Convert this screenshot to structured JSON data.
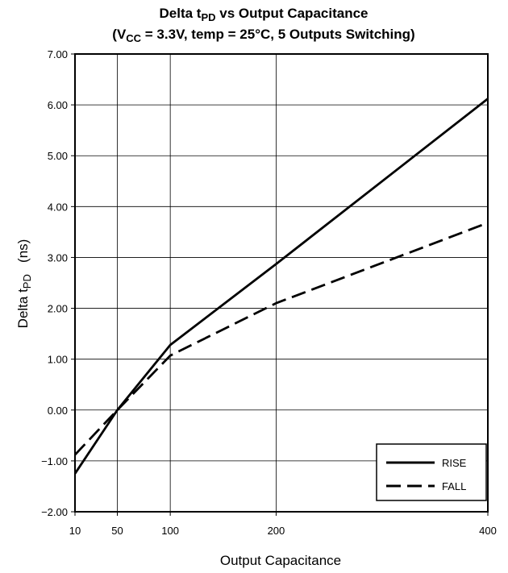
{
  "chart_data": {
    "type": "line",
    "title": {
      "line1": {
        "before": "Delta t",
        "sub": "PD",
        "after": " vs Output Capacitance"
      },
      "line2": {
        "before": "(V",
        "sub": "CC",
        "after": " = 3.3V, temp = 25°C, 5 Outputs Switching)"
      }
    },
    "xlabel": "Output Capacitance",
    "ylabel": {
      "before": "Delta t",
      "sub": "PD",
      "after": "   (ns)"
    },
    "xlim": [
      10,
      400
    ],
    "ylim": [
      -2.0,
      7.0
    ],
    "x_ticks": [
      10,
      50,
      100,
      200,
      400
    ],
    "x_tick_labels": [
      "10",
      "50",
      "100",
      "200",
      "400"
    ],
    "x_gridlines": [
      50,
      100,
      200
    ],
    "y_ticks": [
      7.0,
      6.0,
      5.0,
      4.0,
      3.0,
      2.0,
      1.0,
      0.0,
      -1.0,
      -2.0
    ],
    "y_tick_labels": [
      "7.00",
      "6.00",
      "5.00",
      "4.00",
      "3.00",
      "2.00",
      "1.00",
      "0.00",
      "−1.00",
      "−2.00"
    ],
    "grid": true,
    "legend_position": "bottom-right",
    "series": [
      {
        "name": "RISE",
        "style": "solid",
        "x": [
          10,
          50,
          100,
          200,
          400
        ],
        "y": [
          -1.25,
          0.0,
          1.28,
          2.87,
          6.12
        ]
      },
      {
        "name": "FALL",
        "style": "dashed",
        "x": [
          10,
          50,
          100,
          200,
          400
        ],
        "y": [
          -0.88,
          0.0,
          1.07,
          2.1,
          3.68
        ]
      }
    ]
  }
}
